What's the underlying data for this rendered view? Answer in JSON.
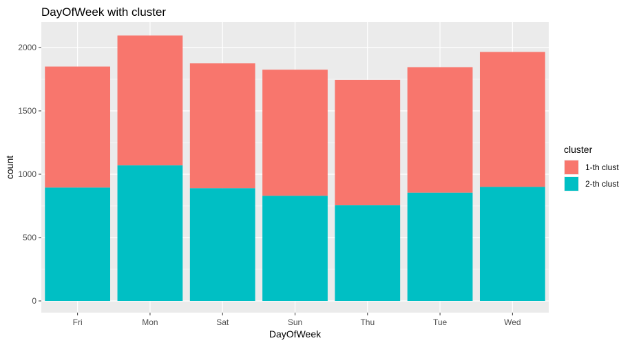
{
  "chart_data": {
    "type": "bar",
    "stacked": true,
    "title": "DayOfWeek with cluster",
    "xlabel": "DayOfWeek",
    "ylabel": "count",
    "categories": [
      "Fri",
      "Mon",
      "Sat",
      "Sun",
      "Thu",
      "Tue",
      "Wed"
    ],
    "ylim": [
      0,
      2200
    ],
    "yticks": [
      0,
      500,
      1000,
      1500,
      2000
    ],
    "ytick_labels": [
      "0",
      "500",
      "1000",
      "1500",
      "2000"
    ],
    "series": [
      {
        "name": "2-th clust",
        "color": "#00BFC4",
        "values": [
          895,
          1070,
          890,
          830,
          755,
          855,
          900
        ]
      },
      {
        "name": "1-th clust",
        "color": "#F8766D",
        "values": [
          955,
          1025,
          985,
          995,
          990,
          990,
          1065
        ]
      }
    ],
    "legend": {
      "title": "cluster",
      "position": "right",
      "entries": [
        {
          "label": "1-th clust",
          "color": "#F8766D"
        },
        {
          "label": "2-th clust",
          "color": "#00BFC4"
        }
      ]
    },
    "grid": true,
    "panel_background": "#EBEBEB",
    "grid_color": "#FFFFFF"
  }
}
